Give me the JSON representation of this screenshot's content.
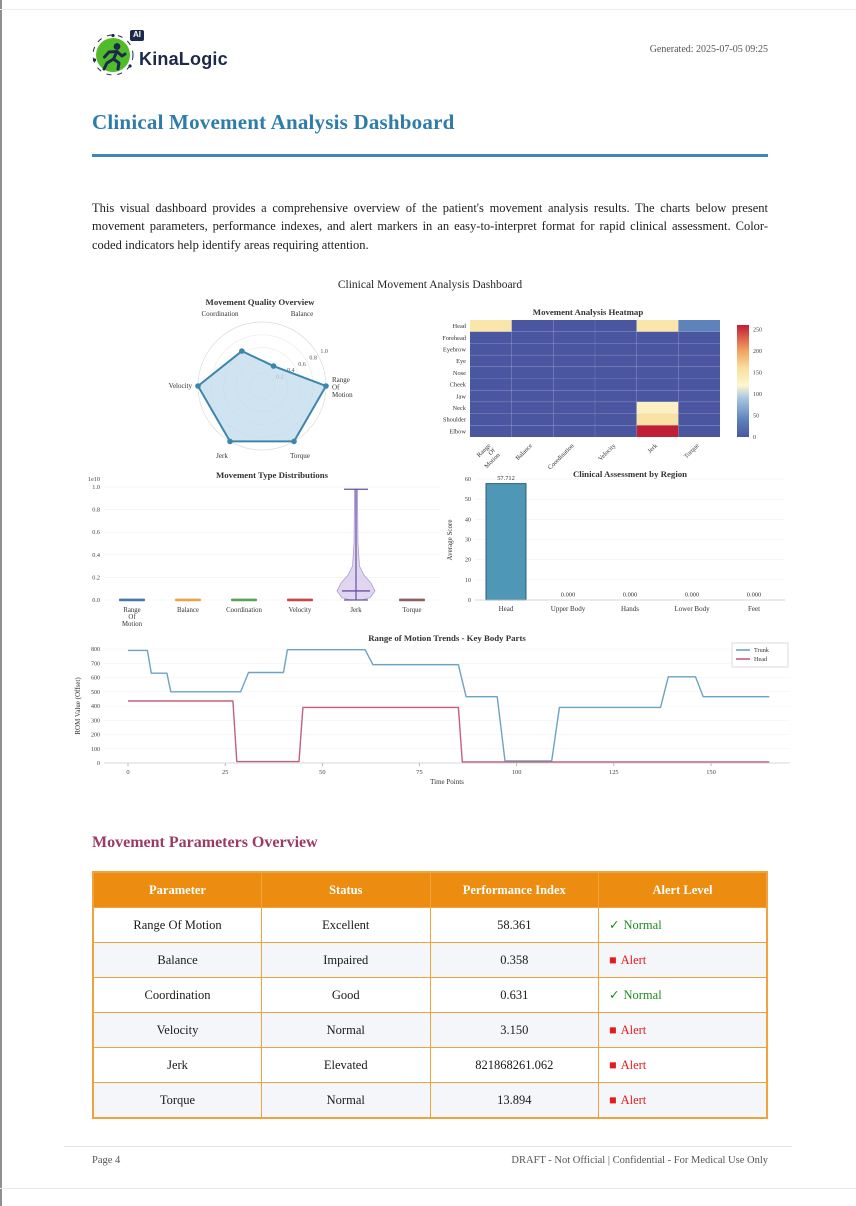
{
  "header": {
    "brand": "KinaLogic",
    "badge": "AI",
    "generated": "Generated: 2025-07-05 09:25"
  },
  "title": "Clinical Movement Analysis Dashboard",
  "intro": "This visual dashboard provides a comprehensive overview of the patient's movement analysis results. The charts below present movement parameters, performance indexes, and alert markers in an easy-to-interpret format for rapid clinical assessment. Color-coded indicators help identify areas requiring attention.",
  "figure_title": "Clinical Movement Analysis Dashboard",
  "section_heading": "Movement Parameters Overview",
  "table": {
    "columns": [
      "Parameter",
      "Status",
      "Performance Index",
      "Alert Level"
    ],
    "rows": [
      {
        "parameter": "Range Of Motion",
        "status": "Excellent",
        "index": "58.361",
        "alert": "Normal",
        "alert_type": "normal"
      },
      {
        "parameter": "Balance",
        "status": "Impaired",
        "index": "0.358",
        "alert": "Alert",
        "alert_type": "alert"
      },
      {
        "parameter": "Coordination",
        "status": "Good",
        "index": "0.631",
        "alert": "Normal",
        "alert_type": "normal"
      },
      {
        "parameter": "Velocity",
        "status": "Normal",
        "index": "3.150",
        "alert": "Alert",
        "alert_type": "alert"
      },
      {
        "parameter": "Jerk",
        "status": "Elevated",
        "index": "821868261.062",
        "alert": "Alert",
        "alert_type": "alert"
      },
      {
        "parameter": "Torque",
        "status": "Normal",
        "index": "13.894",
        "alert": "Alert",
        "alert_type": "alert"
      }
    ],
    "icons": {
      "normal": "✓",
      "alert": "■"
    }
  },
  "footer": {
    "left": "Page 4",
    "right": "DRAFT - Not Official | Confidential - For Medical Use Only"
  },
  "colors": {
    "title_blue": "#2e7ca8",
    "rule_blue": "#3e88b8",
    "heading_plum": "#9c3a66",
    "table_orange": "#ec8c10",
    "table_border": "#f0a23c",
    "normal_green": "#1e8a1e",
    "alert_red": "#e51a1a",
    "logo_green": "#52bb29",
    "logo_navy": "#1b2a4a"
  },
  "chart_data": [
    {
      "type": "radar",
      "title": "Movement Quality Overview",
      "axes": [
        [
          "Range",
          "Of",
          "Motion"
        ],
        [
          "Balance"
        ],
        [
          "Coordination"
        ],
        [
          "Velocity"
        ],
        [
          "Jerk"
        ],
        [
          "Torque"
        ]
      ],
      "values": [
        1.0,
        0.36,
        0.63,
        1.0,
        1.0,
        1.0
      ],
      "ticks": [
        "0.2",
        "0.4",
        "0.6",
        "0.8",
        "1.0"
      ],
      "fill": "#bcd9ea",
      "stroke": "#3d86ab",
      "ylim": [
        0,
        1.0
      ]
    },
    {
      "type": "heatmap",
      "title": "Movement Analysis Heatmap",
      "rows": [
        "Head",
        "Forehead",
        "Eyebrow",
        "Eye",
        "Nose",
        "Cheek",
        "Jaw",
        "Neck",
        "Shoulder",
        "Elbow"
      ],
      "cols": [
        [
          "Range",
          "Of",
          "Motion"
        ],
        [
          "Balance"
        ],
        [
          "Coordination"
        ],
        [
          "Velocity"
        ],
        [
          "Jerk"
        ],
        [
          "Torque"
        ]
      ],
      "values": [
        [
          150,
          0,
          0,
          0,
          150,
          40
        ],
        [
          0,
          0,
          0,
          0,
          0,
          0
        ],
        [
          0,
          0,
          0,
          0,
          0,
          0
        ],
        [
          0,
          0,
          0,
          0,
          0,
          0
        ],
        [
          0,
          0,
          0,
          0,
          0,
          0
        ],
        [
          0,
          0,
          0,
          0,
          0,
          0
        ],
        [
          0,
          0,
          0,
          0,
          0,
          0
        ],
        [
          0,
          0,
          0,
          0,
          130,
          0
        ],
        [
          0,
          0,
          0,
          0,
          155,
          0
        ],
        [
          0,
          0,
          0,
          0,
          260,
          0
        ]
      ],
      "vmin": 0,
      "vmax": 260,
      "colorbar_ticks": [
        0,
        50,
        100,
        150,
        200,
        250
      ],
      "colormap_stops": [
        [
          0,
          "#4b56a1"
        ],
        [
          40,
          "#5e82ba"
        ],
        [
          90,
          "#a7c6e0"
        ],
        [
          120,
          "#fdf6d0"
        ],
        [
          140,
          "#fbeab5"
        ],
        [
          160,
          "#f8dfa0"
        ],
        [
          200,
          "#f0a35f"
        ],
        [
          230,
          "#dd5f4b"
        ],
        [
          260,
          "#c01f35"
        ]
      ]
    },
    {
      "type": "violin",
      "title": "Movement Type Distributions",
      "categories": [
        [
          "Range",
          "Of",
          "Motion"
        ],
        [
          "Balance"
        ],
        [
          "Coordination"
        ],
        [
          "Velocity"
        ],
        [
          "Jerk"
        ],
        [
          "Torque"
        ]
      ],
      "yticks": [
        "0.0",
        "0.2",
        "0.4",
        "0.6",
        "0.8",
        "1.0"
      ],
      "offset_label": "1e10",
      "ylim": [
        0,
        1.0
      ],
      "dash_colors": [
        "#4878a8",
        "#efa143",
        "#57a457",
        "#cc4444",
        null,
        "#8b5f5f"
      ],
      "jerk": {
        "min": 0.0,
        "max": 0.98,
        "median": 0.08,
        "profile": [
          [
            0.0,
            6
          ],
          [
            0.02,
            14
          ],
          [
            0.08,
            19
          ],
          [
            0.15,
            15
          ],
          [
            0.22,
            8
          ],
          [
            0.3,
            3.5
          ],
          [
            0.5,
            2
          ],
          [
            0.98,
            1.5
          ]
        ],
        "fill": "#cbbae6",
        "line": "#6a4f9e"
      }
    },
    {
      "type": "bar",
      "title": "Clinical Assessment by Region",
      "categories": [
        "Head",
        "Upper Body",
        "Hands",
        "Lower Body",
        "Feet"
      ],
      "values": [
        57.712,
        0,
        0,
        0,
        0
      ],
      "value_labels": [
        "57.712",
        "0.000",
        "0.000",
        "0.000",
        "0.000"
      ],
      "ylabel": "Average Score",
      "ylim": [
        0,
        60
      ],
      "yticks": [
        0,
        10,
        20,
        30,
        40,
        50,
        60
      ],
      "bar_fill": "#4e97b7",
      "bar_edge": "#2b5d75"
    },
    {
      "type": "line",
      "title": "Range of Motion Trends - Key Body Parts",
      "xlabel": "Time Points",
      "ylabel": "ROM Value (Offset)",
      "xlim": [
        0,
        165
      ],
      "ylim": [
        0,
        800
      ],
      "xticks": [
        0,
        25,
        50,
        75,
        100,
        125,
        150
      ],
      "yticks": [
        0,
        100,
        200,
        300,
        400,
        500,
        600,
        700,
        800
      ],
      "legend_position": "top-right",
      "series": [
        {
          "name": "Trunk",
          "color": "#6ba3c4",
          "points": [
            [
              0,
              790
            ],
            [
              5,
              790
            ],
            [
              6,
              630
            ],
            [
              10,
              630
            ],
            [
              11,
              500
            ],
            [
              29,
              500
            ],
            [
              31,
              635
            ],
            [
              40,
              635
            ],
            [
              41,
              795
            ],
            [
              61,
              795
            ],
            [
              63,
              690
            ],
            [
              85,
              690
            ],
            [
              87,
              465
            ],
            [
              95,
              465
            ],
            [
              97,
              15
            ],
            [
              109,
              15
            ],
            [
              111,
              390
            ],
            [
              137,
              390
            ],
            [
              139,
              605
            ],
            [
              146,
              605
            ],
            [
              148,
              465
            ],
            [
              165,
              465
            ]
          ]
        },
        {
          "name": "Head",
          "color": "#c2607a",
          "points": [
            [
              0,
              435
            ],
            [
              27,
              435
            ],
            [
              28,
              10
            ],
            [
              44,
              10
            ],
            [
              45,
              390
            ],
            [
              85,
              390
            ],
            [
              86,
              8
            ],
            [
              165,
              8
            ]
          ]
        }
      ]
    }
  ]
}
